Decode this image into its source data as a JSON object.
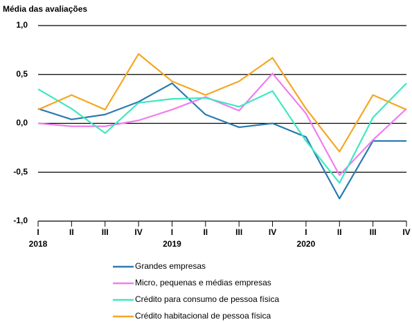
{
  "chart_data": {
    "type": "line",
    "y_label": "Média das avaliações",
    "categories": [
      "I",
      "II",
      "III",
      "IV",
      "I",
      "II",
      "III",
      "IV",
      "I",
      "II",
      "III",
      "IV"
    ],
    "year_labels": [
      "2018",
      null,
      null,
      null,
      "2019",
      null,
      null,
      null,
      "2020",
      null,
      null,
      null
    ],
    "ylim": [
      -1,
      1
    ],
    "yticks": [
      {
        "value": 1,
        "label": "1,0"
      },
      {
        "value": 0.5,
        "label": "0,5"
      },
      {
        "value": 0,
        "label": "0,0"
      },
      {
        "value": -0.5,
        "label": "-0,5"
      },
      {
        "value": -1,
        "label": "-1,0"
      }
    ],
    "grid": true,
    "series": [
      {
        "name": "Grandes empresas",
        "color": "#2a7ab0",
        "values": [
          0.15,
          0.04,
          0.09,
          0.22,
          0.41,
          0.09,
          -0.04,
          0.0,
          -0.14,
          -0.77,
          -0.18,
          -0.18
        ]
      },
      {
        "name": "Micro, pequenas e médias empresas",
        "color": "#f07cf0",
        "values": [
          0.0,
          -0.03,
          -0.03,
          0.03,
          0.14,
          0.27,
          0.13,
          0.51,
          0.1,
          -0.53,
          -0.17,
          0.15
        ]
      },
      {
        "name": "Crédito para consumo de pessoa física",
        "color": "#3de8c0",
        "values": [
          0.35,
          0.15,
          -0.1,
          0.21,
          0.25,
          0.26,
          0.17,
          0.33,
          -0.18,
          -0.61,
          0.06,
          0.41
        ]
      },
      {
        "name": "Crédito habitacional de pessoa física",
        "color": "#f5a623",
        "values": [
          0.14,
          0.29,
          0.14,
          0.71,
          0.43,
          0.29,
          0.43,
          0.67,
          0.15,
          -0.29,
          0.29,
          0.14
        ]
      }
    ]
  }
}
